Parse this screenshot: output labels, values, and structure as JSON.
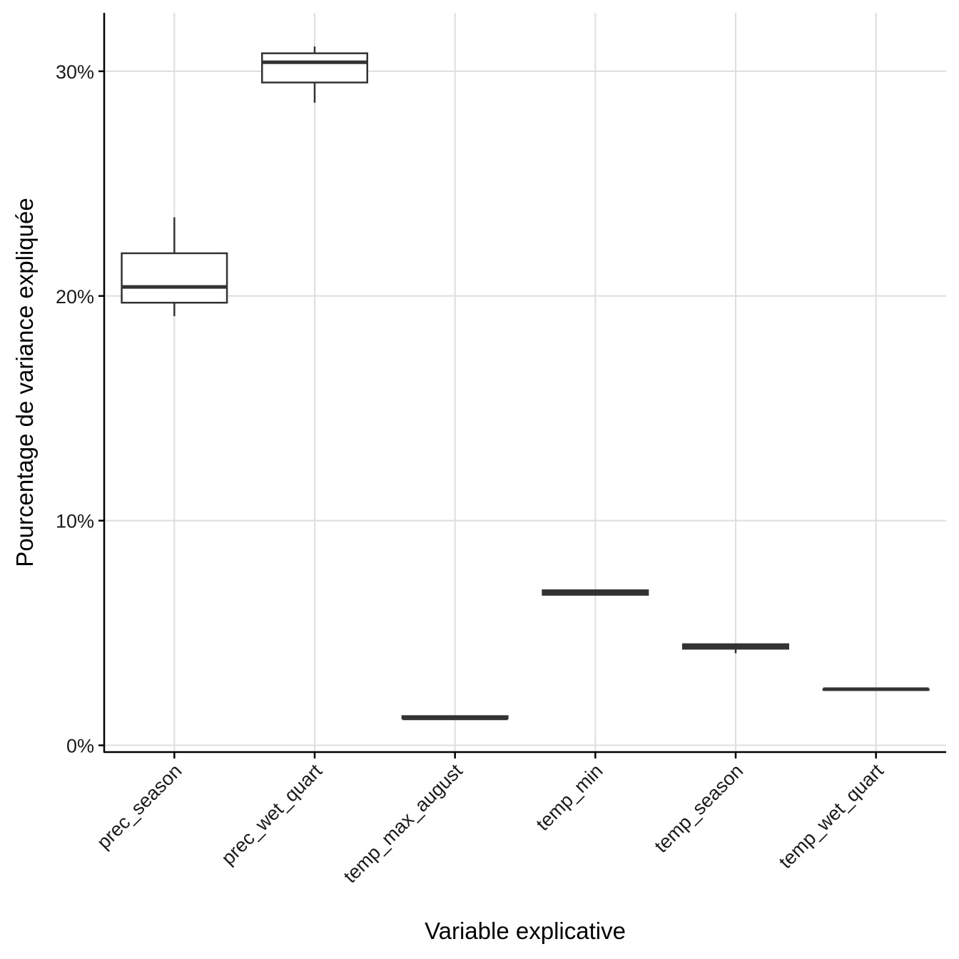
{
  "chart_data": {
    "type": "boxplot",
    "xlabel": "Variable explicative",
    "ylabel": "Pourcentage de variance expliquée",
    "ylim": [
      -0.3,
      32.6
    ],
    "y_ticks": [
      0,
      10,
      20,
      30
    ],
    "y_tick_labels": [
      "0%",
      "10%",
      "20%",
      "30%"
    ],
    "grid": true,
    "categories": [
      "prec_season",
      "prec_wet_quart",
      "temp_max_august",
      "temp_min",
      "temp_season",
      "temp_wet_quart"
    ],
    "boxes": [
      {
        "category": "prec_season",
        "min": 19.1,
        "q1": 19.7,
        "median": 20.4,
        "q3": 21.9,
        "max": 23.5
      },
      {
        "category": "prec_wet_quart",
        "min": 28.6,
        "q1": 29.5,
        "median": 30.4,
        "q3": 30.8,
        "max": 31.1
      },
      {
        "category": "temp_max_august",
        "min": 1.2,
        "q1": 1.2,
        "median": 1.2,
        "q3": 1.3,
        "max": 1.3
      },
      {
        "category": "temp_min",
        "min": 6.7,
        "q1": 6.7,
        "median": 6.8,
        "q3": 6.9,
        "max": 6.9
      },
      {
        "category": "temp_season",
        "min": 4.1,
        "q1": 4.3,
        "median": 4.4,
        "q3": 4.5,
        "max": 4.5
      },
      {
        "category": "temp_wet_quart",
        "min": 2.5,
        "q1": 2.5,
        "median": 2.5,
        "q3": 2.5,
        "max": 2.5
      }
    ]
  }
}
